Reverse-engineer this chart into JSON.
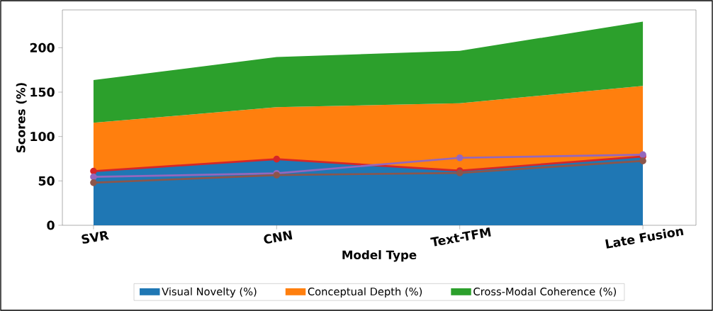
{
  "chart_data": {
    "type": "area",
    "stacked": true,
    "xlabel": "Model Type",
    "ylabel": "Scores (%)",
    "categories": [
      "SVR",
      "CNN",
      "Text-TFM",
      "Late Fusion"
    ],
    "series": [
      {
        "name": "Visual Novelty (%)",
        "color": "#1f77b4",
        "values": [
          61,
          74.5,
          61.5,
          77.5
        ]
      },
      {
        "name": "Conceptual Depth (%)",
        "color": "#ff7f0e",
        "values": [
          54.5,
          58.5,
          76,
          79.5
        ]
      },
      {
        "name": "Cross-Modal Coherence (%)",
        "color": "#2ca02c",
        "values": [
          48,
          56.5,
          59,
          72.5
        ]
      },
      {
        "type": "line",
        "color": "#d62728",
        "marker": "circle",
        "values": [
          61,
          74.5,
          61.5,
          77.5
        ]
      },
      {
        "type": "line",
        "color": "#9467bd",
        "marker": "circle",
        "values": [
          54.5,
          58.5,
          76,
          79.5
        ]
      },
      {
        "type": "line",
        "color": "#8c564b",
        "marker": "circle",
        "values": [
          48,
          56.5,
          59,
          72.5
        ]
      }
    ],
    "ylim": [
      0,
      242.6
    ],
    "yticks": [
      0,
      50,
      100,
      150,
      200
    ],
    "grid": false,
    "legend": "bottom"
  }
}
